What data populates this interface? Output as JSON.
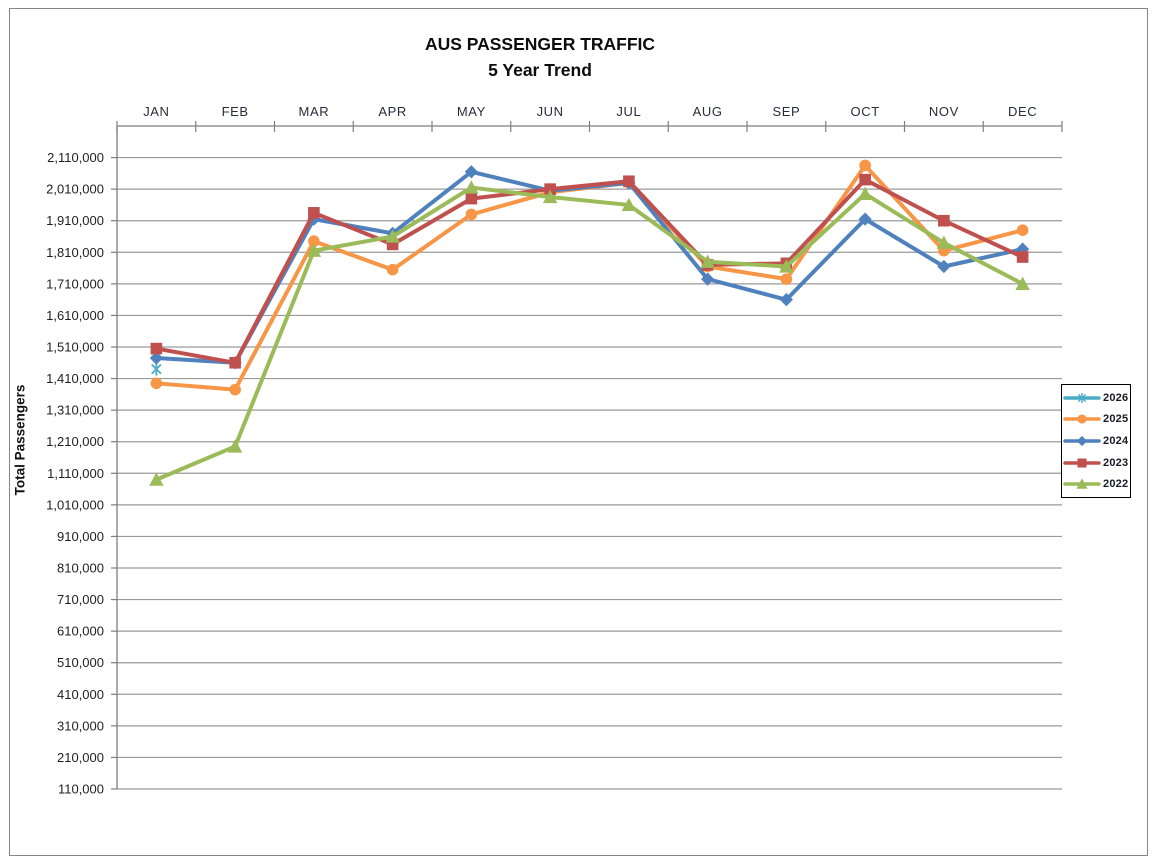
{
  "chart_data": {
    "type": "line",
    "title": "AUS PASSENGER TRAFFIC",
    "subtitle": "5 Year Trend",
    "xlabel": "",
    "ylabel": "Total Passengers",
    "categories": [
      "JAN",
      "FEB",
      "MAR",
      "APR",
      "MAY",
      "JUN",
      "JUL",
      "AUG",
      "SEP",
      "OCT",
      "NOV",
      "DEC"
    ],
    "y_axis": {
      "min": 110000,
      "max": 2210000,
      "tick_step": 100000,
      "tick_values": [
        110000,
        210000,
        310000,
        410000,
        510000,
        610000,
        710000,
        810000,
        910000,
        1010000,
        1110000,
        1210000,
        1310000,
        1410000,
        1510000,
        1610000,
        1710000,
        1810000,
        1910000,
        2010000,
        2110000
      ],
      "tick_format": "#,##0"
    },
    "grid": "horizontal-only",
    "legend_position": "right",
    "legend_order": [
      "2026",
      "2025",
      "2024",
      "2023",
      "2022"
    ],
    "series": [
      {
        "name": "2026",
        "color": "#4BACC6",
        "marker": "asterisk",
        "values": [
          1440000,
          null,
          null,
          null,
          null,
          null,
          null,
          null,
          null,
          null,
          null,
          null
        ]
      },
      {
        "name": "2025",
        "color": "#F79646",
        "marker": "circle",
        "values": [
          1395000,
          1375000,
          1845000,
          1755000,
          1930000,
          2000000,
          2030000,
          1765000,
          1725000,
          2085000,
          1815000,
          1880000
        ]
      },
      {
        "name": "2024",
        "color": "#4F81BD",
        "marker": "diamond",
        "values": [
          1475000,
          1460000,
          1915000,
          1870000,
          2065000,
          2005000,
          2030000,
          1725000,
          1660000,
          1915000,
          1765000,
          1820000
        ]
      },
      {
        "name": "2023",
        "color": "#C0504D",
        "marker": "square",
        "values": [
          1505000,
          1460000,
          1935000,
          1835000,
          1980000,
          2010000,
          2035000,
          1770000,
          1775000,
          2040000,
          1910000,
          1795000
        ]
      },
      {
        "name": "2022",
        "color": "#9BBB59",
        "marker": "triangle-up",
        "values": [
          1090000,
          1195000,
          1815000,
          1860000,
          2015000,
          1985000,
          1960000,
          1780000,
          1765000,
          1995000,
          1840000,
          1710000
        ]
      }
    ]
  }
}
